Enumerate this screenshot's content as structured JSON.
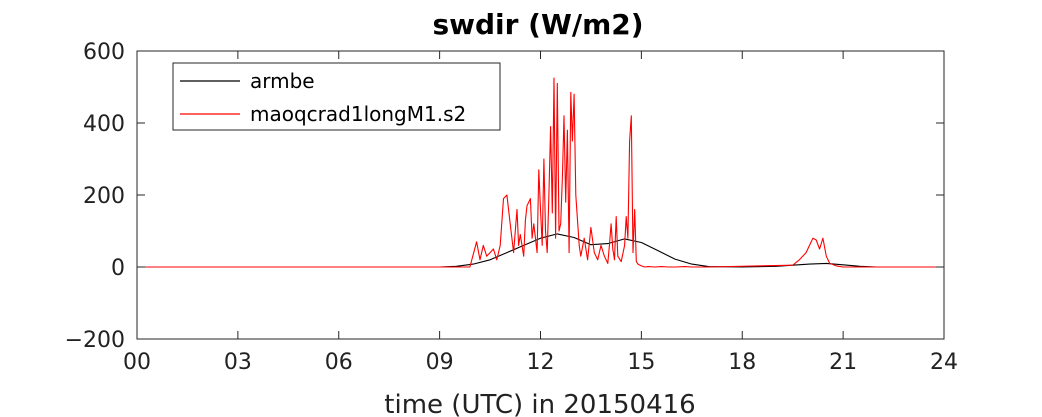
{
  "chart_data": {
    "type": "line",
    "title": "swdir  (W/m2)",
    "xlabel": "time (UTC) in 20150416",
    "ylabel": "",
    "xlim": [
      0,
      24
    ],
    "ylim": [
      -200,
      600
    ],
    "xticks": [
      0,
      3,
      6,
      9,
      12,
      15,
      18,
      21,
      24
    ],
    "xtick_labels": [
      "00",
      "03",
      "06",
      "09",
      "12",
      "15",
      "18",
      "21",
      "24"
    ],
    "yticks": [
      -200,
      0,
      200,
      400,
      600
    ],
    "ytick_labels": [
      "−200",
      "0",
      "200",
      "400",
      "600"
    ],
    "grid": false,
    "legend_position": "top-left",
    "series": [
      {
        "name": "armbe",
        "color": "#000000",
        "x": [
          0,
          9,
          9.5,
          10,
          10.5,
          11,
          11.5,
          12,
          12.5,
          13,
          13.5,
          14,
          14.5,
          15,
          15.5,
          16,
          16.5,
          17,
          18,
          19,
          19.5,
          20,
          20.5,
          21,
          21.5,
          22,
          24
        ],
        "y": [
          0,
          0,
          2,
          8,
          20,
          40,
          60,
          80,
          92,
          82,
          62,
          65,
          78,
          68,
          45,
          22,
          8,
          1,
          0,
          2,
          5,
          8,
          10,
          6,
          2,
          0,
          0
        ]
      },
      {
        "name": "maoqcrad1longM1.s2",
        "color": "#ff0000",
        "x": [
          0,
          9.9,
          10.1,
          10.2,
          10.3,
          10.4,
          10.5,
          10.6,
          10.7,
          10.8,
          10.9,
          11.0,
          11.1,
          11.2,
          11.3,
          11.35,
          11.4,
          11.5,
          11.55,
          11.6,
          11.7,
          11.75,
          11.8,
          11.9,
          11.95,
          12.0,
          12.05,
          12.1,
          12.15,
          12.2,
          12.25,
          12.3,
          12.35,
          12.4,
          12.45,
          12.5,
          12.55,
          12.6,
          12.65,
          12.7,
          12.75,
          12.8,
          12.85,
          12.9,
          12.95,
          13.0,
          13.05,
          13.1,
          13.15,
          13.2,
          13.3,
          13.4,
          13.5,
          13.6,
          13.7,
          13.8,
          13.9,
          14.0,
          14.05,
          14.1,
          14.15,
          14.2,
          14.25,
          14.3,
          14.4,
          14.5,
          14.55,
          14.6,
          14.65,
          14.7,
          14.75,
          14.8,
          14.85,
          14.9,
          15.0,
          15.1,
          15.2,
          15.4,
          15.6,
          15.8,
          16.0,
          16.3,
          16.5,
          16.7,
          17,
          19.5,
          19.7,
          19.9,
          20.0,
          20.1,
          20.2,
          20.3,
          20.4,
          20.5,
          20.6,
          20.8,
          21,
          24
        ],
        "y": [
          0,
          0,
          70,
          20,
          60,
          30,
          40,
          50,
          20,
          60,
          190,
          200,
          120,
          40,
          160,
          60,
          90,
          30,
          130,
          170,
          190,
          80,
          120,
          40,
          270,
          160,
          60,
          300,
          100,
          40,
          200,
          390,
          150,
          525,
          80,
          510,
          100,
          120,
          250,
          420,
          180,
          380,
          40,
          485,
          350,
          480,
          200,
          130,
          60,
          30,
          80,
          20,
          110,
          40,
          20,
          60,
          30,
          10,
          60,
          120,
          50,
          20,
          140,
          30,
          15,
          60,
          140,
          80,
          350,
          420,
          40,
          160,
          15,
          8,
          3,
          0,
          1,
          0,
          1,
          0,
          0,
          1,
          0,
          0,
          0,
          5,
          20,
          40,
          60,
          80,
          75,
          50,
          80,
          30,
          10,
          3,
          0,
          0
        ]
      }
    ]
  }
}
